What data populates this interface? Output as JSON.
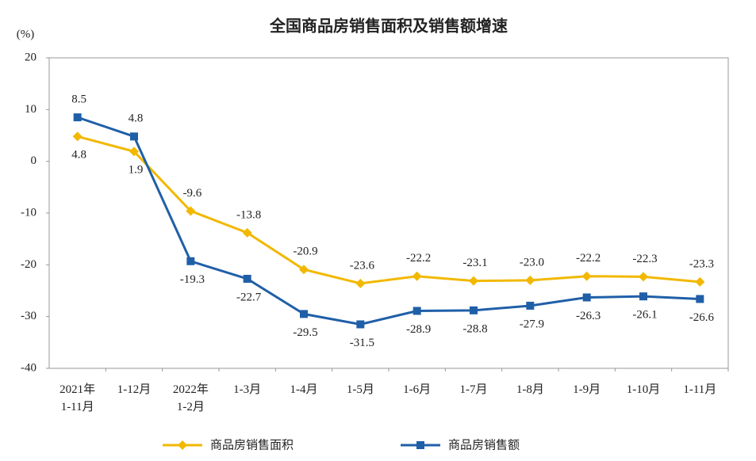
{
  "chart_data": {
    "type": "line",
    "title": "全国商品房销售面积及销售额增速",
    "y_unit": "(%)",
    "categories": [
      "2021年\n1-11月",
      "1-12月",
      "2022年\n1-2月",
      "1-3月",
      "1-4月",
      "1-5月",
      "1-6月",
      "1-7月",
      "1-8月",
      "1-9月",
      "1-10月",
      "1-11月"
    ],
    "series": [
      {
        "name": "商品房销售面积",
        "color": "#f2b800",
        "marker": "diamond",
        "values": [
          4.8,
          1.9,
          -9.6,
          -13.8,
          -20.9,
          -23.6,
          -22.2,
          -23.1,
          -23.0,
          -22.2,
          -22.3,
          -23.3
        ],
        "value_labels": [
          "4.8",
          "1.9",
          "-9.6",
          "-13.8",
          "-20.9",
          "-23.6",
          "-22.2",
          "-23.1",
          "-23.0",
          "-22.2",
          "-22.3",
          "-23.3"
        ]
      },
      {
        "name": "商品房销售额",
        "color": "#1f5fa8",
        "marker": "square",
        "values": [
          8.5,
          4.8,
          -19.3,
          -22.7,
          -29.5,
          -31.5,
          -28.9,
          -28.8,
          -27.9,
          -26.3,
          -26.1,
          -26.6
        ],
        "value_labels": [
          "8.5",
          "4.8",
          "-19.3",
          "-22.7",
          "-29.5",
          "-31.5",
          "-28.9",
          "-28.8",
          "-27.9",
          "-26.3",
          "-26.1",
          "-26.6"
        ]
      }
    ],
    "ylim": [
      -40,
      20
    ],
    "yticks": [
      -40,
      -30,
      -20,
      -10,
      0,
      10,
      20
    ],
    "grid": false
  }
}
